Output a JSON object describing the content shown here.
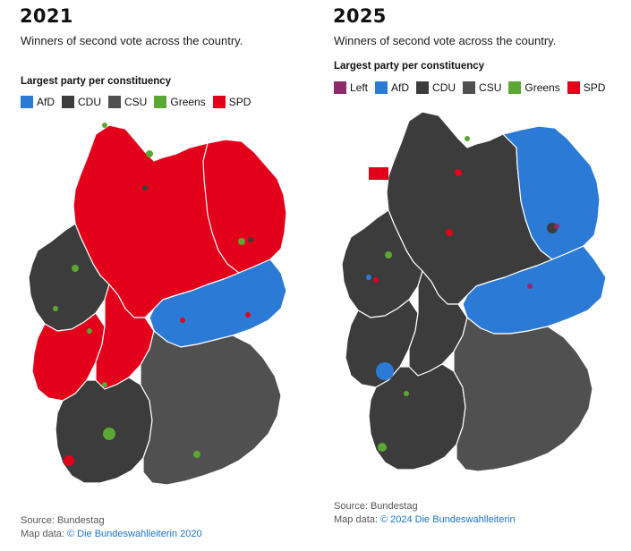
{
  "colors": {
    "Left": "#8e2a6b",
    "AfD": "#2b7bd6",
    "CDU": "#3c3c3c",
    "CSU": "#505050",
    "Greens": "#5aa832",
    "SPD": "#e3001b",
    "border": "#ffffff"
  },
  "panels": [
    {
      "year": "2021",
      "subtitle": "Winners of second vote across the country.",
      "legend_title": "Largest party per constituency",
      "legend": [
        {
          "label": "AfD",
          "color": "#2b7bd6"
        },
        {
          "label": "CDU",
          "color": "#3c3c3c"
        },
        {
          "label": "CSU",
          "color": "#505050"
        },
        {
          "label": "Greens",
          "color": "#5aa832"
        },
        {
          "label": "SPD",
          "color": "#e3001b"
        }
      ],
      "source": "Source: Bundestag",
      "mapdata_prefix": "Map data: ",
      "mapdata_link": "© Die Bundeswahlleiterin 2020",
      "map_regions": {
        "north_center": "SPD",
        "east": "SPD",
        "saxony_thuringia": "AfD",
        "west": "CDU",
        "rhine_west": "SPD",
        "hesse_rlp": "SPD",
        "baden_wuerttemberg": "CDU",
        "bavaria": "CSU"
      }
    },
    {
      "year": "2025",
      "subtitle": "Winners of second vote across the country.",
      "legend_title": "Largest party per constituency",
      "legend": [
        {
          "label": "Left",
          "color": "#8e2a6b"
        },
        {
          "label": "AfD",
          "color": "#2b7bd6"
        },
        {
          "label": "CDU",
          "color": "#3c3c3c"
        },
        {
          "label": "CSU",
          "color": "#505050"
        },
        {
          "label": "Greens",
          "color": "#5aa832"
        },
        {
          "label": "SPD",
          "color": "#e3001b"
        }
      ],
      "source": "Source: Bundestag",
      "mapdata_prefix": "Map data: ",
      "mapdata_link": "© 2024 Die Bundeswahlleiterin",
      "map_regions": {
        "north_center": "CDU",
        "east": "AfD",
        "saxony_thuringia": "AfD",
        "west": "CDU",
        "rhine_west": "CDU",
        "hesse_rlp": "CDU",
        "baden_wuerttemberg": "CDU",
        "bavaria": "CSU"
      }
    }
  ]
}
